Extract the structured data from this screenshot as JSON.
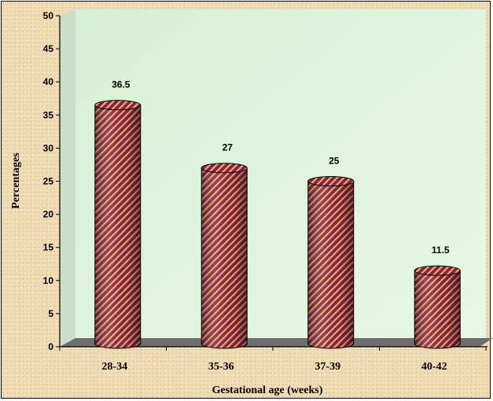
{
  "chart_data": {
    "type": "bar",
    "categories": [
      "28-34",
      "35-36",
      "37-39",
      "40-42"
    ],
    "values": [
      36.5,
      27,
      25,
      11.5
    ],
    "data_labels": [
      "36.5",
      "27",
      "25",
      "11.5"
    ],
    "xlabel": "Gestational age (weeks)",
    "ylabel": "Percentages",
    "ylim": [
      0,
      50
    ],
    "yticks": [
      0,
      5,
      10,
      15,
      20,
      25,
      30,
      35,
      40,
      45,
      50
    ],
    "grid": false,
    "style": "3d-cylinder",
    "colors": {
      "bar_fill": "#8b1f3f",
      "bar_stripe": "#e8b070",
      "plot_wall": "#e3f5e1",
      "floor": "#6e6e6e",
      "background": "#f0dcb3"
    }
  }
}
